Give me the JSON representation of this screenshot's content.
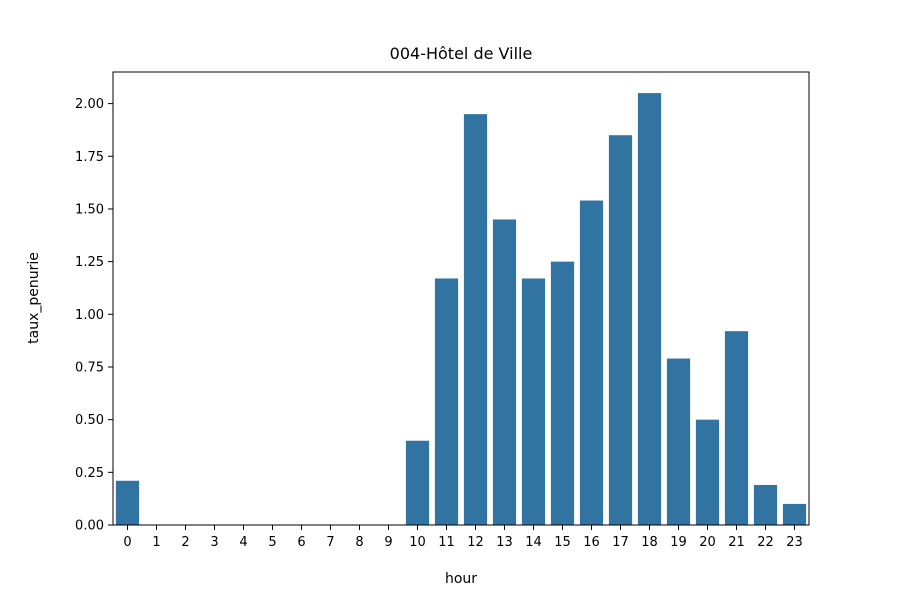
{
  "chart_data": {
    "type": "bar",
    "title": "004-Hôtel de Ville",
    "xlabel": "hour",
    "ylabel": "taux_penurie",
    "categories": [
      "0",
      "1",
      "2",
      "3",
      "4",
      "5",
      "6",
      "7",
      "8",
      "9",
      "10",
      "11",
      "12",
      "13",
      "14",
      "15",
      "16",
      "17",
      "18",
      "19",
      "20",
      "21",
      "22",
      "23"
    ],
    "values": [
      0.21,
      0,
      0,
      0,
      0,
      0,
      0,
      0,
      0,
      0,
      0.4,
      1.17,
      1.95,
      1.45,
      1.17,
      1.25,
      1.54,
      1.85,
      2.05,
      0.79,
      0.5,
      0.92,
      0.19,
      0.1
    ],
    "ylim": [
      0,
      2.15
    ],
    "yticks": [
      0,
      0.25,
      0.5,
      0.75,
      1.0,
      1.25,
      1.5,
      1.75,
      2.0
    ],
    "ytick_labels": [
      "0.00",
      "0.25",
      "0.50",
      "0.75",
      "1.00",
      "1.25",
      "1.50",
      "1.75",
      "2.00"
    ],
    "grid": false,
    "bar_color": "#3274a1"
  }
}
